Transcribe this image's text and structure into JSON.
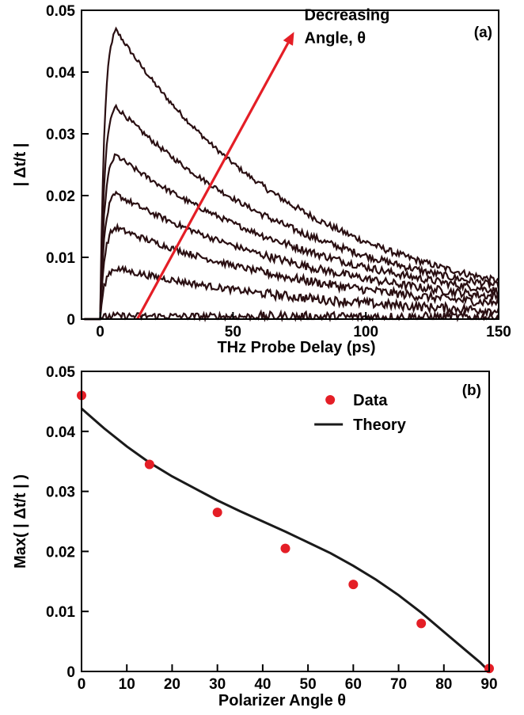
{
  "chart_data": [
    {
      "panel": "(a)",
      "type": "line",
      "xlabel": "THz Probe Delay (ps)",
      "ylabel": "| Δt/t |",
      "xlim": [
        -7,
        150
      ],
      "ylim": [
        0,
        0.05
      ],
      "xticks": [
        "0",
        "50",
        "100",
        "150"
      ],
      "yticks": [
        "0",
        "0.01",
        "0.02",
        "0.03",
        "0.04",
        "0.05"
      ],
      "annotation": {
        "line1": "Decreasing",
        "line2": "Angle, θ",
        "arrow_from": [
          14,
          0
        ],
        "arrow_to": [
          73,
          0.0465
        ],
        "color": "#e41e26"
      },
      "line_color": "#2a0f12",
      "series": [
        {
          "peak_x": 6,
          "peak": 0.0468,
          "end": 0.0062
        },
        {
          "peak_x": 6,
          "peak": 0.0344,
          "end": 0.0054
        },
        {
          "peak_x": 6,
          "peak": 0.0265,
          "end": 0.0046
        },
        {
          "peak_x": 6,
          "peak": 0.0202,
          "end": 0.0036
        },
        {
          "peak_x": 6,
          "peak": 0.0148,
          "end": 0.0026
        },
        {
          "peak_x": 6,
          "peak": 0.0082,
          "end": 0.0014
        },
        {
          "peak_x": 6,
          "peak": 0.0005,
          "end": 0.0003
        }
      ],
      "grid": false
    },
    {
      "panel": "(b)",
      "type": "scatter",
      "xlabel": "Polarizer Angle θ",
      "ylabel": "Max( | Δt/t | )",
      "xlim": [
        0,
        90
      ],
      "ylim": [
        0,
        0.05
      ],
      "xticks": [
        "0",
        "10",
        "20",
        "30",
        "40",
        "50",
        "60",
        "70",
        "80",
        "90"
      ],
      "yticks": [
        "0",
        "0.01",
        "0.02",
        "0.03",
        "0.04",
        "0.05"
      ],
      "legend": [
        {
          "label": "Data",
          "marker": "dot",
          "color": "#e41e26"
        },
        {
          "label": "Theory",
          "marker": "line",
          "color": "#1a1a1a"
        }
      ],
      "legend_position": "top-right",
      "series": [
        {
          "name": "Data",
          "x": [
            0,
            15,
            30,
            45,
            60,
            75,
            90
          ],
          "y": [
            0.046,
            0.0345,
            0.0265,
            0.0205,
            0.0145,
            0.008,
            0.0005
          ]
        },
        {
          "name": "Theory",
          "x": [
            0,
            5,
            10,
            15,
            20,
            25,
            30,
            35,
            40,
            45,
            50,
            55,
            60,
            65,
            70,
            75,
            80,
            85,
            88,
            90
          ],
          "y": [
            0.0438,
            0.0405,
            0.0375,
            0.0348,
            0.0325,
            0.0305,
            0.0285,
            0.0267,
            0.025,
            0.0233,
            0.0215,
            0.0197,
            0.0176,
            0.0153,
            0.0127,
            0.0098,
            0.0066,
            0.0034,
            0.0015,
            0.0
          ]
        }
      ],
      "grid": false
    }
  ]
}
